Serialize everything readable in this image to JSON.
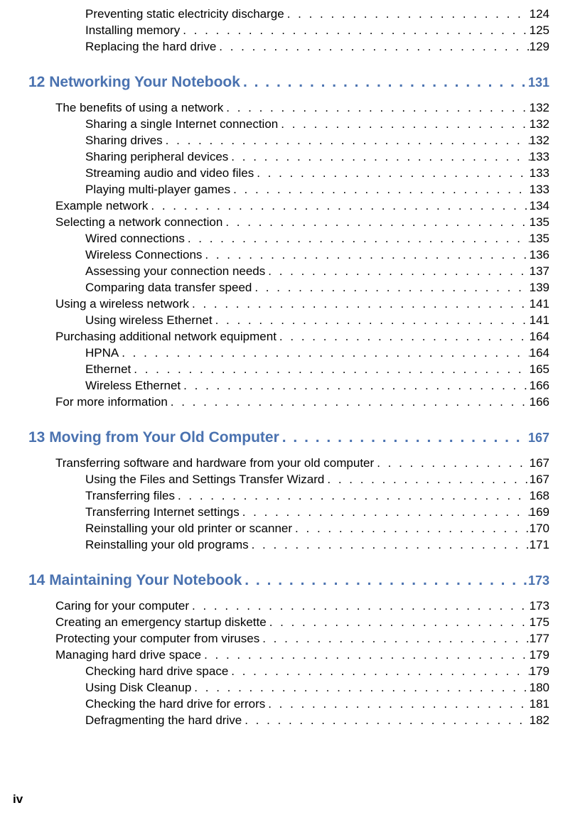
{
  "entries": [
    {
      "level": "subsection",
      "label": "Preventing static electricity discharge",
      "page": "124"
    },
    {
      "level": "subsection",
      "label": "Installing memory",
      "page": "125"
    },
    {
      "level": "subsection",
      "label": "Replacing the hard drive",
      "page": "129"
    },
    {
      "level": "chapter",
      "label": "12 Networking Your Notebook",
      "page": "131"
    },
    {
      "level": "section",
      "label": "The benefits of using a network",
      "page": "132"
    },
    {
      "level": "subsection",
      "label": "Sharing a single Internet connection",
      "page": "132"
    },
    {
      "level": "subsection",
      "label": "Sharing drives",
      "page": "132"
    },
    {
      "level": "subsection",
      "label": "Sharing peripheral devices",
      "page": "133"
    },
    {
      "level": "subsection",
      "label": "Streaming audio and video files",
      "page": "133"
    },
    {
      "level": "subsection",
      "label": "Playing multi-player games",
      "page": "133"
    },
    {
      "level": "section",
      "label": "Example network",
      "page": "134"
    },
    {
      "level": "section",
      "label": "Selecting a network connection",
      "page": "135"
    },
    {
      "level": "subsection",
      "label": "Wired connections",
      "page": "135"
    },
    {
      "level": "subsection",
      "label": "Wireless Connections",
      "page": "136"
    },
    {
      "level": "subsection",
      "label": "Assessing your connection needs",
      "page": "137"
    },
    {
      "level": "subsection",
      "label": "Comparing data transfer speed",
      "page": "139"
    },
    {
      "level": "section",
      "label": "Using a wireless network",
      "page": "141"
    },
    {
      "level": "subsection",
      "label": "Using wireless Ethernet",
      "page": "141"
    },
    {
      "level": "section",
      "label": "Purchasing additional network equipment",
      "page": "164"
    },
    {
      "level": "subsection",
      "label": "HPNA",
      "page": "164"
    },
    {
      "level": "subsection",
      "label": "Ethernet",
      "page": "165"
    },
    {
      "level": "subsection",
      "label": "Wireless Ethernet",
      "page": "166"
    },
    {
      "level": "section",
      "label": "For more information",
      "page": "166"
    },
    {
      "level": "chapter",
      "label": "13 Moving from Your Old Computer",
      "page": "167"
    },
    {
      "level": "section",
      "label": "Transferring software and hardware from your old computer",
      "page": "167"
    },
    {
      "level": "subsection",
      "label": "Using the Files and Settings Transfer Wizard",
      "page": "167"
    },
    {
      "level": "subsection",
      "label": "Transferring files",
      "page": "168"
    },
    {
      "level": "subsection",
      "label": "Transferring Internet settings",
      "page": "169"
    },
    {
      "level": "subsection",
      "label": "Reinstalling your old printer or scanner",
      "page": "170"
    },
    {
      "level": "subsection",
      "label": "Reinstalling your old programs",
      "page": "171"
    },
    {
      "level": "chapter",
      "label": "14 Maintaining Your Notebook",
      "page": "173"
    },
    {
      "level": "section",
      "label": "Caring for your computer",
      "page": "173"
    },
    {
      "level": "section",
      "label": "Creating an emergency startup diskette",
      "page": "175"
    },
    {
      "level": "section",
      "label": "Protecting your computer from viruses",
      "page": "177"
    },
    {
      "level": "section",
      "label": "Managing hard drive space",
      "page": "179"
    },
    {
      "level": "subsection",
      "label": "Checking hard drive space",
      "page": "179"
    },
    {
      "level": "subsection",
      "label": "Using Disk Cleanup",
      "page": "180"
    },
    {
      "level": "subsection",
      "label": "Checking the hard drive for errors",
      "page": "181"
    },
    {
      "level": "subsection",
      "label": "Defragmenting the hard drive",
      "page": "182"
    }
  ],
  "footer": "iv",
  "colors": {
    "chapter": "#4a72b0",
    "text": "#000000",
    "background": "#ffffff"
  },
  "typography": {
    "body_fontsize": 17,
    "chapter_fontsize": 21,
    "footer_fontsize": 17,
    "font_family": "Arial, Helvetica, sans-serif"
  },
  "dots_fill": " . . . . . . . . . . . . . . . . . . . . . . . . . . . . . . . . . . . . . . . . . . . . . . . . . . . . . . . . . . . . . . . . . . . . . . . . . . . . . . . . . . . . . . . . . . . . . . . . . . . . . . . . . . . ."
}
